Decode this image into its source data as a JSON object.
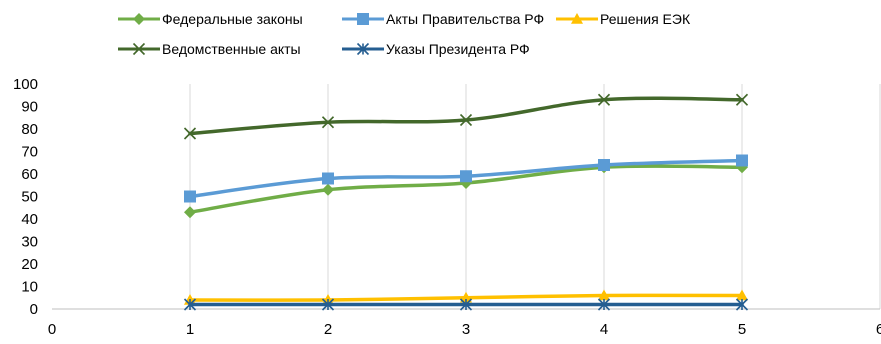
{
  "chart_data": {
    "type": "line",
    "title": "",
    "xlabel": "",
    "ylabel": "",
    "xlim": [
      0,
      6
    ],
    "ylim": [
      0,
      100
    ],
    "x_ticks": [
      0,
      1,
      2,
      3,
      4,
      5,
      6
    ],
    "y_ticks": [
      0,
      10,
      20,
      30,
      40,
      50,
      60,
      70,
      80,
      90,
      100
    ],
    "x_tick_labels": [
      "0",
      "1",
      "2",
      "3",
      "4",
      "5",
      "6"
    ],
    "y_tick_labels": [
      "0",
      "10",
      "20",
      "30",
      "40",
      "50",
      "60",
      "70",
      "80",
      "90",
      "100"
    ],
    "grid": "vertical",
    "smooth": true,
    "legend_position": "top",
    "x": [
      1,
      2,
      3,
      4,
      5
    ],
    "series": [
      {
        "name": "Федеральные законы",
        "values": [
          43,
          53,
          56,
          63,
          63
        ],
        "color": "#70ad47",
        "marker": "diamond"
      },
      {
        "name": "Акты Правительства РФ",
        "values": [
          50,
          58,
          59,
          64,
          66
        ],
        "color": "#5b9bd5",
        "marker": "square"
      },
      {
        "name": "Решения ЕЭК",
        "values": [
          4,
          4,
          5,
          6,
          6
        ],
        "color": "#ffc000",
        "marker": "triangle"
      },
      {
        "name": "Ведомственные акты",
        "values": [
          78,
          83,
          84,
          93,
          93
        ],
        "color": "#43682b",
        "marker": "x"
      },
      {
        "name": "Указы Президента РФ",
        "values": [
          2,
          2,
          2,
          2,
          2
        ],
        "color": "#255e91",
        "marker": "asterisk"
      }
    ]
  }
}
